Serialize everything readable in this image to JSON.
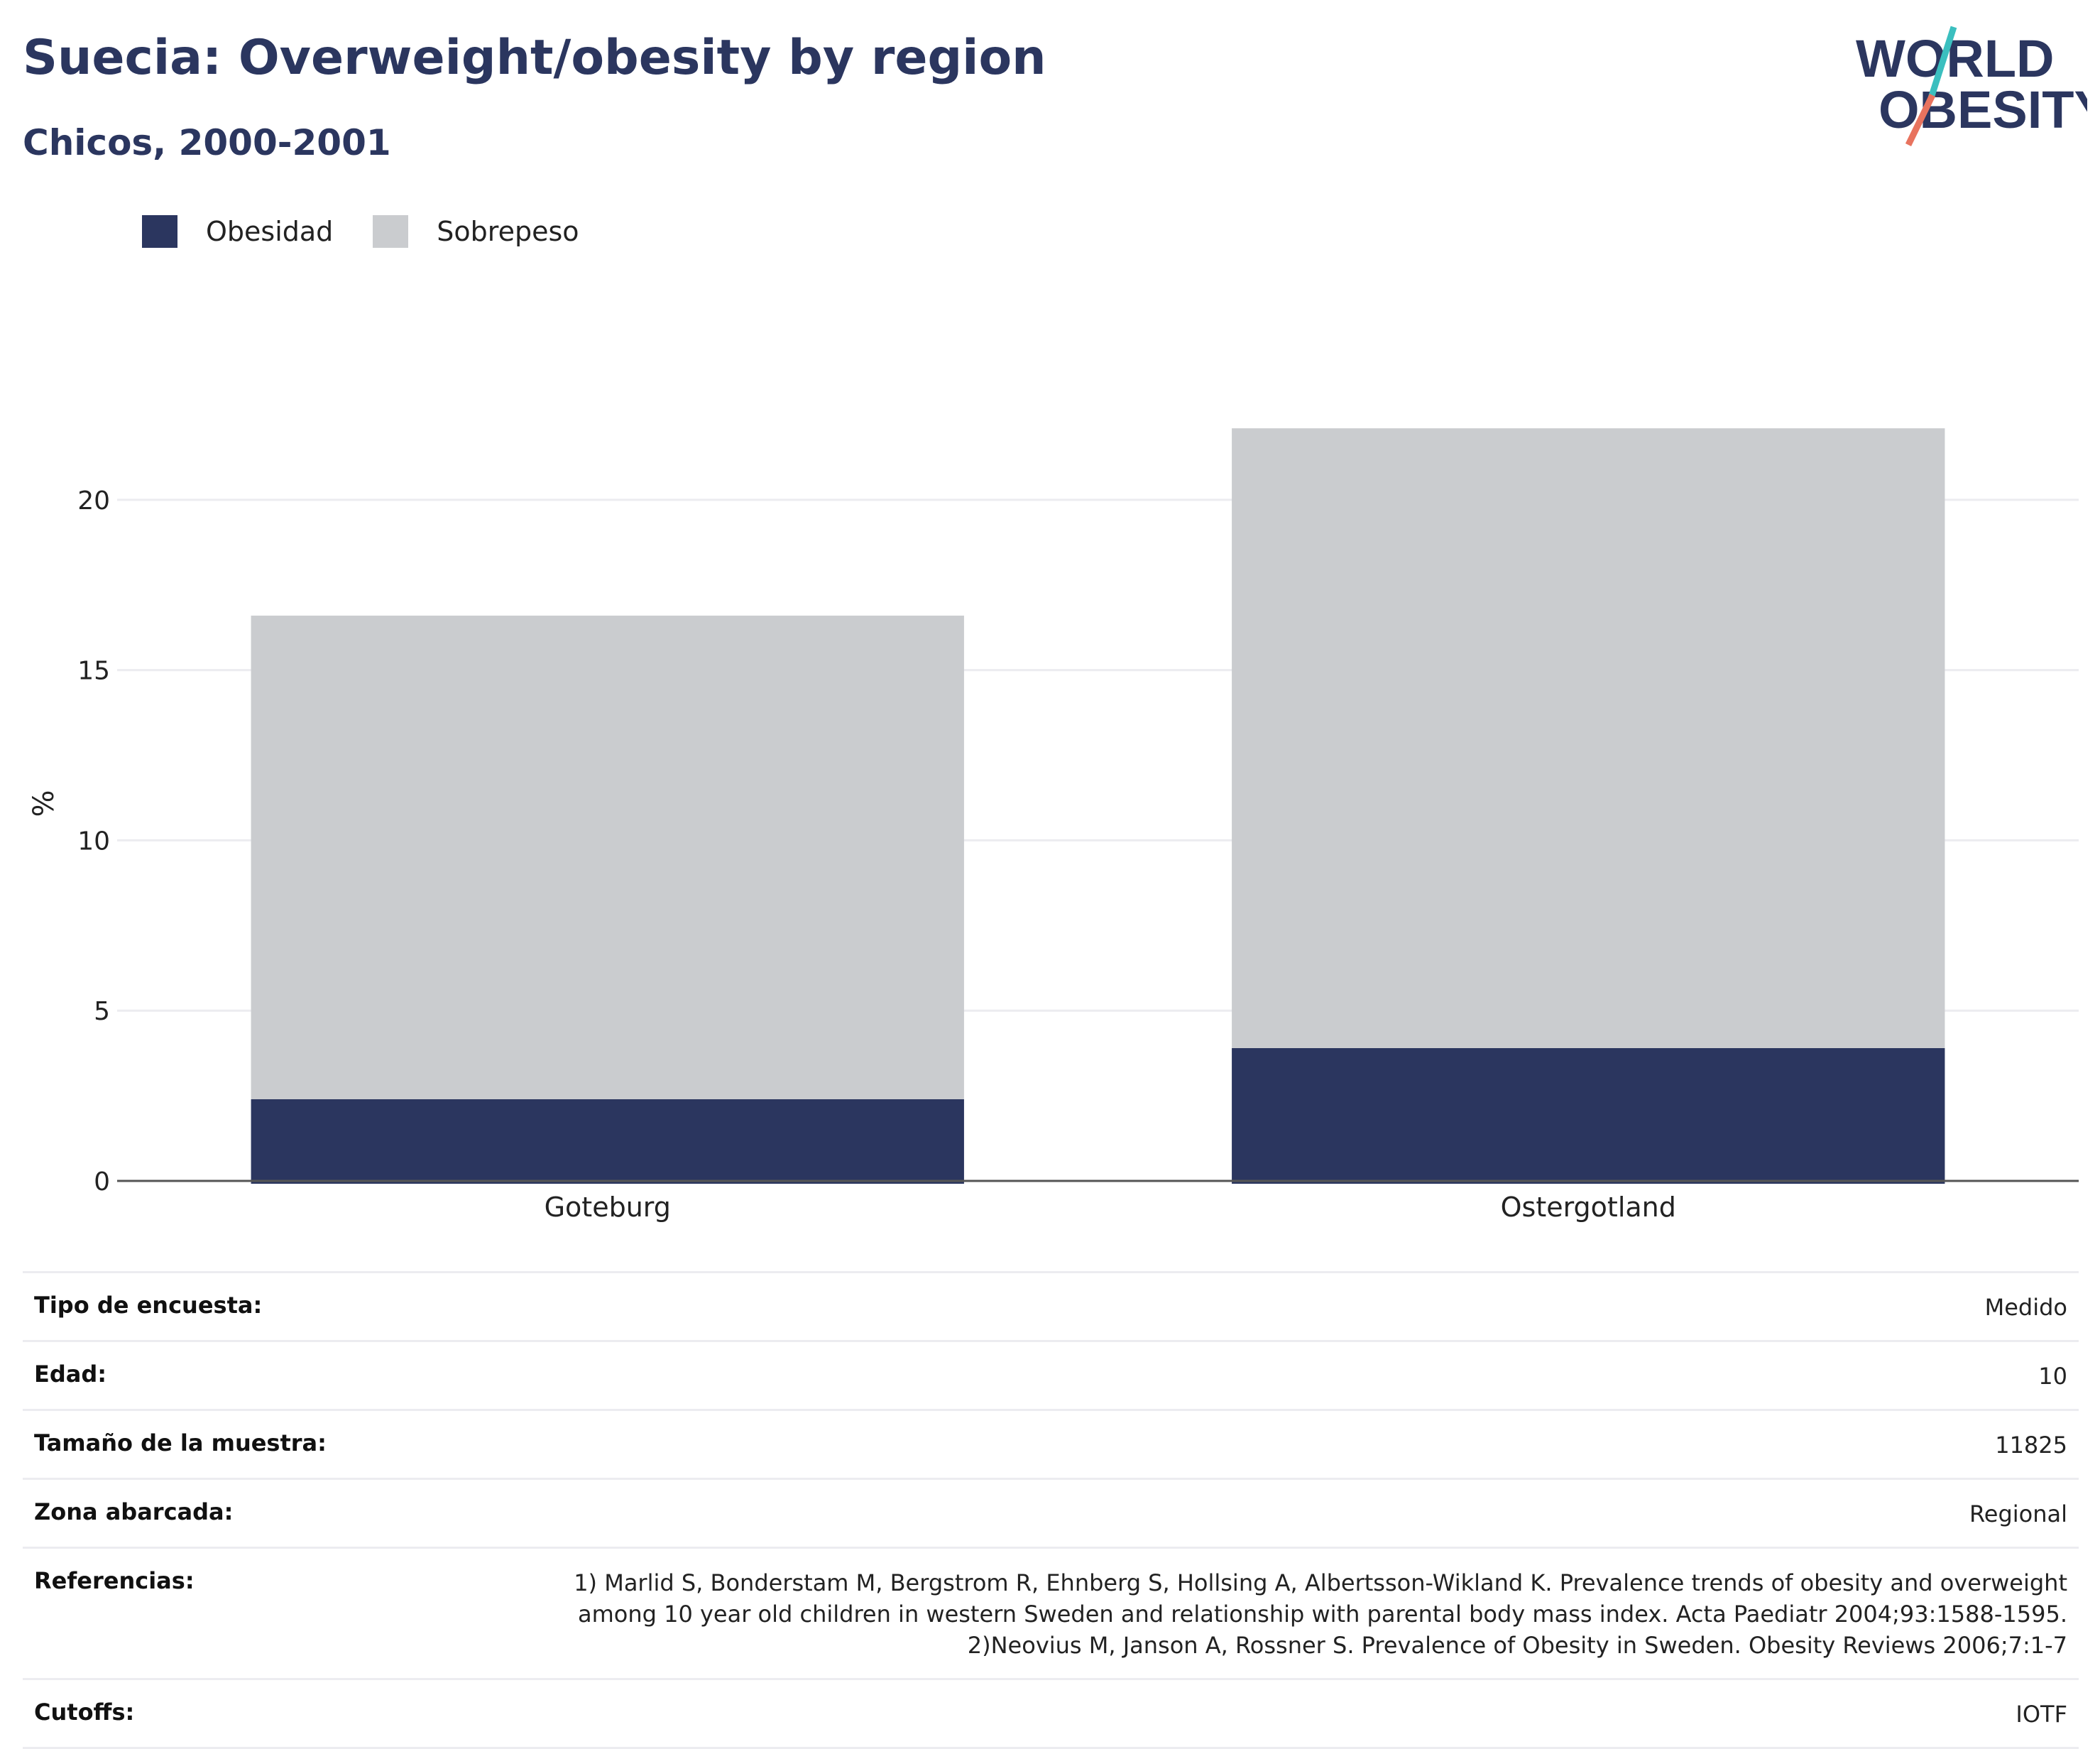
{
  "header": {
    "title": "Suecia: Overweight/obesity by region",
    "subtitle": "Chicos, 2000-2001"
  },
  "logo": {
    "line1": "WORLD",
    "line2": "OBESITY"
  },
  "colors": {
    "obesity": "#2b365f",
    "overweight": "#cacccf",
    "title": "#2b365f",
    "logo_teal": "#3bbfbf",
    "logo_coral": "#e8735e",
    "grid": "#ececf0",
    "axis": "#555555"
  },
  "legend": [
    {
      "label": "Obesidad",
      "color": "#2b365f"
    },
    {
      "label": "Sobrepeso",
      "color": "#cacccf"
    }
  ],
  "chart_data": {
    "type": "bar",
    "stacked": true,
    "categories": [
      "Goteburg",
      "Ostergotland"
    ],
    "series": [
      {
        "name": "Obesidad",
        "values": [
          2.4,
          3.9
        ]
      },
      {
        "name": "Sobrepeso",
        "values": [
          14.2,
          18.2
        ]
      }
    ],
    "ylabel": "%",
    "ylim": [
      0,
      23
    ],
    "yticks": [
      0,
      5,
      10,
      15,
      20
    ],
    "grid": true,
    "legend_position": "top-left"
  },
  "metadata": [
    {
      "label": "Tipo de encuesta:",
      "value": [
        "Medido"
      ]
    },
    {
      "label": "Edad:",
      "value": [
        "10"
      ]
    },
    {
      "label": "Tamaño de la muestra:",
      "value": [
        "11825"
      ]
    },
    {
      "label": "Zona abarcada:",
      "value": [
        "Regional"
      ]
    },
    {
      "label": "Referencias:",
      "value": [
        "1) Marlid S, Bonderstam M, Bergstrom R, Ehnberg S, Hollsing A, Albertsson-Wikland K. Prevalence trends of obesity and overweight",
        "among 10 year old children in western Sweden and relationship with parental body mass index. Acta Paediatr 2004;93:1588-1595.",
        "2)Neovius M, Janson A, Rossner S. Prevalence of Obesity in Sweden. Obesity Reviews 2006;7:1-7"
      ]
    },
    {
      "label": "Cutoffs:",
      "value": [
        "IOTF"
      ]
    }
  ]
}
